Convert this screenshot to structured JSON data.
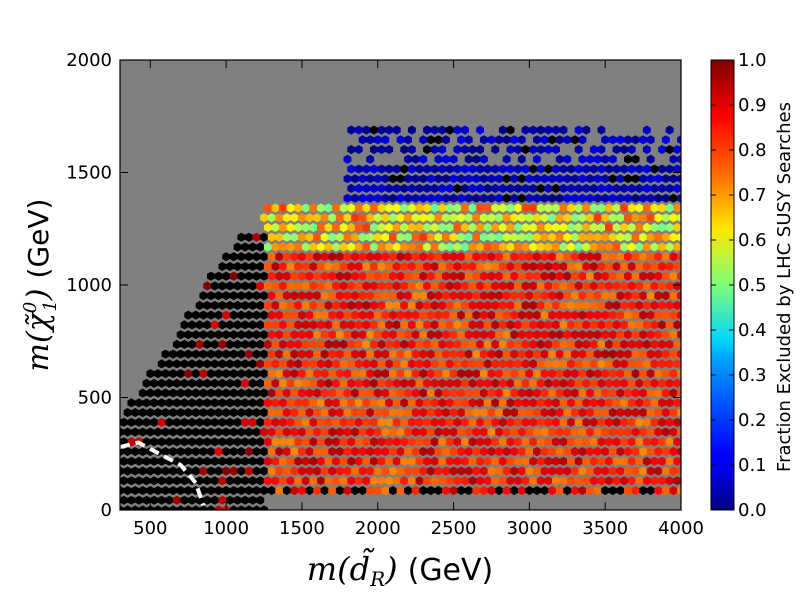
{
  "chart_data": {
    "type": "heatmap",
    "title": "",
    "xlabel": "m(d̃_R) (GeV)",
    "xlabel_parts": {
      "func": "m(",
      "sym": "d̃",
      "sub": "R",
      "close": ")",
      "unit": "(GeV)"
    },
    "ylabel": "m(χ̃⁰₁) (GeV)",
    "ylabel_parts": {
      "func": "m(",
      "sym": "χ̃",
      "sup": "0",
      "sub": "1",
      "close": ")",
      "unit": "(GeV)"
    },
    "xlim": [
      300,
      4000
    ],
    "ylim": [
      0,
      2000
    ],
    "xticks": [
      "500",
      "1000",
      "1500",
      "2000",
      "2500",
      "3000",
      "3500",
      "4000"
    ],
    "xtick_values": [
      500,
      1000,
      1500,
      2000,
      2500,
      3000,
      3500,
      4000
    ],
    "yticks": [
      "0",
      "500",
      "1000",
      "1500",
      "2000"
    ],
    "ytick_values": [
      0,
      500,
      1000,
      1500,
      2000
    ],
    "colorbar": {
      "label": "Fraction Excluded by LHC SUSY Searches",
      "range": [
        0.0,
        1.0
      ],
      "colormap": "jet",
      "ticks": [
        "0.0",
        "0.1",
        "0.2",
        "0.3",
        "0.4",
        "0.5",
        "0.6",
        "0.7",
        "0.8",
        "0.9",
        "1.0"
      ],
      "tick_values": [
        0.0,
        0.1,
        0.2,
        0.3,
        0.4,
        0.5,
        0.6,
        0.7,
        0.8,
        0.9,
        1.0
      ]
    },
    "background_color": "#808080",
    "no_data_color": "#000000",
    "grid": false,
    "hexbin": {
      "x_step": 50,
      "y_step": 43.3,
      "regions": [
        {
          "x_from": 300,
          "x_to": 1250,
          "y_from": 0,
          "y_to_at_x": [
            [
              300,
              420
            ],
            [
              600,
              700
            ],
            [
              900,
              1050
            ],
            [
              1100,
              1220
            ],
            [
              1250,
              1250
            ]
          ],
          "fraction": null
        },
        {
          "x_from": 1250,
          "x_to": 4000,
          "y_from": 60,
          "y_to": 1150,
          "fraction": 0.85
        },
        {
          "x_from": 1250,
          "x_to": 4000,
          "y_from": 1150,
          "y_to": 1350,
          "fraction": 0.65
        },
        {
          "x_from": 1800,
          "x_to": 4000,
          "y_from": 1350,
          "y_to": 1700,
          "fraction": 0.05
        }
      ]
    },
    "contour": {
      "style": "white-dashed",
      "points": [
        [
          300,
          280
        ],
        [
          420,
          300
        ],
        [
          560,
          250
        ],
        [
          700,
          200
        ],
        [
          800,
          120
        ],
        [
          850,
          20
        ]
      ]
    },
    "colors": {
      "frame": "#000000",
      "contour": "#ffffff"
    }
  }
}
